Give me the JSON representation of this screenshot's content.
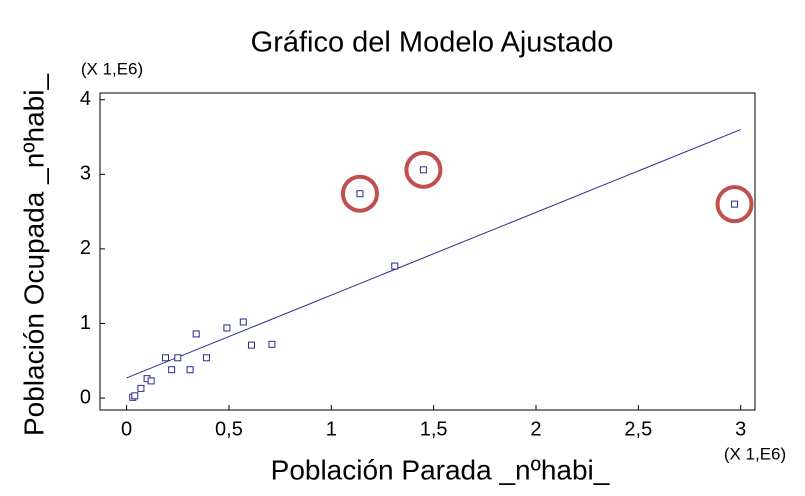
{
  "chart_data": {
    "type": "scatter",
    "title": "Gráfico del Modelo Ajustado",
    "x_label": "Población Parada _nºhabi_",
    "y_label": "Población Ocupada _nºhabi_",
    "x_multiplier": "(X 1,E6)",
    "y_multiplier": "(X 1,E6)",
    "x": [
      0.03,
      0.04,
      0.07,
      0.1,
      0.12,
      0.19,
      0.22,
      0.25,
      0.31,
      0.34,
      0.39,
      0.49,
      0.57,
      0.61,
      0.71,
      1.14,
      1.31,
      1.45,
      2.97
    ],
    "values": [
      0.01,
      0.03,
      0.13,
      0.26,
      0.23,
      0.54,
      0.38,
      0.54,
      0.38,
      0.86,
      0.54,
      0.94,
      1.02,
      0.71,
      0.72,
      2.74,
      1.77,
      3.06,
      2.6
    ],
    "color": "#2a2a8c",
    "fit_line": {
      "x": [
        0,
        3
      ],
      "values": [
        0.27,
        3.6
      ],
      "color": "#2a2a8c"
    },
    "highlight_indices": [
      15,
      17,
      18
    ],
    "highlight_color": "#c0504d",
    "xlim": [
      -0.13,
      3.07
    ],
    "ylim": [
      -0.16,
      4.09
    ],
    "xticks": [
      0,
      {
        "value": 0.5,
        "label": "0,5"
      },
      1,
      {
        "value": 1.5,
        "label": "1,5"
      },
      2,
      {
        "value": 2.5,
        "label": "2,5"
      },
      3
    ],
    "yticks": [
      0,
      1,
      2,
      3,
      4
    ]
  }
}
